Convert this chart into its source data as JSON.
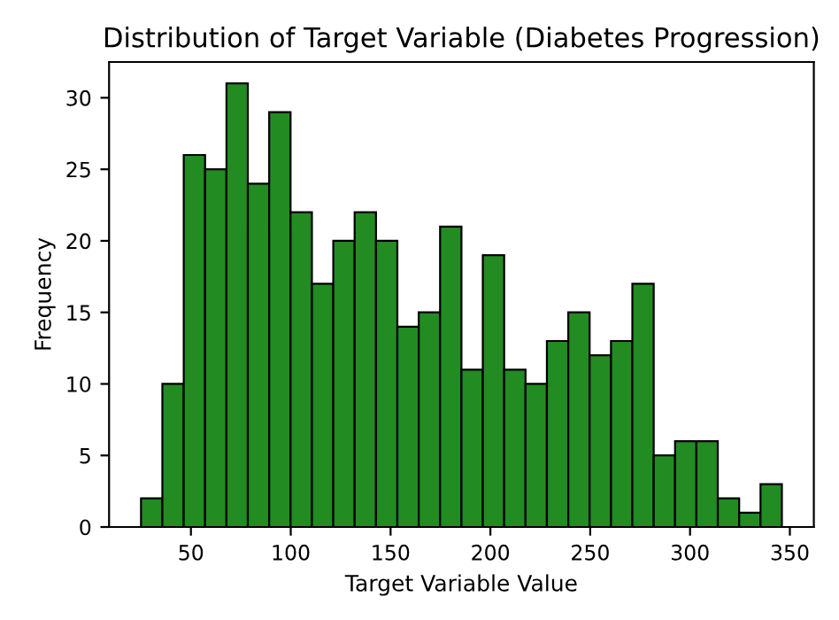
{
  "chart_data": {
    "type": "histogram",
    "title": "Distribution of Target Variable (Diabetes Progression)",
    "xlabel": "Target Variable Value",
    "ylabel": "Frequency",
    "bins": [
      25,
      35.7,
      46.4,
      57.1,
      67.8,
      78.5,
      89.2,
      99.9,
      110.6,
      121.3,
      132,
      142.7,
      153.4,
      164.1,
      174.8,
      185.5,
      196.2,
      206.9,
      217.6,
      228.3,
      239,
      249.7,
      260.4,
      271.1,
      281.8,
      292.5,
      303.2,
      313.9,
      324.6,
      335.3,
      346
    ],
    "values": [
      2,
      10,
      26,
      25,
      31,
      24,
      29,
      22,
      17,
      20,
      22,
      20,
      14,
      15,
      21,
      11,
      19,
      11,
      10,
      13,
      15,
      12,
      13,
      17,
      5,
      6,
      6,
      2,
      1,
      3
    ],
    "color": "#228b22",
    "xlim": [
      9,
      362
    ],
    "ylim": [
      0,
      32.5
    ],
    "xticks": [
      50,
      100,
      150,
      200,
      250,
      300,
      350
    ],
    "yticks": [
      0,
      5,
      10,
      15,
      20,
      25,
      30
    ],
    "grid": false
  }
}
